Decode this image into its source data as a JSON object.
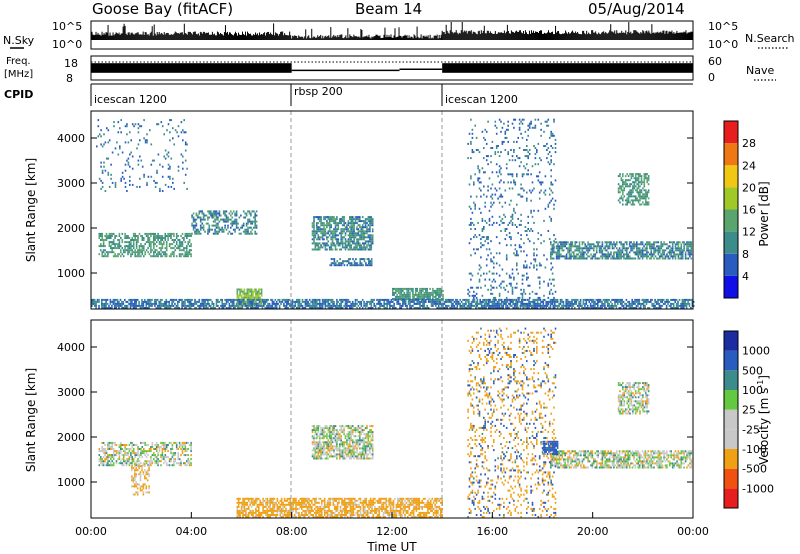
{
  "header": {
    "station": "Goose Bay (fitACF)",
    "beam": "Beam 14",
    "date": "05/Aug/2014"
  },
  "noise_panel": {
    "left_label": "N.Sky",
    "left_ticks": [
      "10^5",
      "10^0"
    ],
    "right_label": "N.Search",
    "right_ticks": [
      "10^5",
      "10^0"
    ]
  },
  "freq_panel": {
    "left_label_line1": "Freq.",
    "left_label_line2": "[MHz]",
    "left_ticks": [
      "18",
      "8"
    ],
    "right_label": "Nave",
    "right_ticks": [
      "60",
      "0"
    ]
  },
  "cpid_panel": {
    "label": "CPID",
    "segments": [
      {
        "name": "icescan 1200",
        "start_hour": 0
      },
      {
        "name": "rbsp 200",
        "start_hour": 8
      },
      {
        "name": "icescan 1200",
        "start_hour": 14
      }
    ]
  },
  "colors": {
    "power": [
      "#1010e6",
      "#2a5cbf",
      "#3c8c8c",
      "#5aa56e",
      "#a0c828",
      "#f0c814",
      "#f07814",
      "#e61e1e"
    ],
    "velocity": [
      "#e61e1e",
      "#f05010",
      "#f0a014",
      "#c8c8c8",
      "#c8c8c8",
      "#64c840",
      "#3c8c8c",
      "#2a5cbf",
      "#1a2ca0"
    ]
  },
  "chart_data": [
    {
      "type": "heatmap",
      "name": "power",
      "ylabel": "Slant Range [km]",
      "yticks": [
        "4000",
        "3000",
        "2000",
        "1000"
      ],
      "ylim": [
        200,
        4600
      ],
      "xlim": [
        0,
        24
      ],
      "colorbar_label": "Power [dB]",
      "colorbar_ticks": [
        "28",
        "24",
        "20",
        "16",
        "12",
        "8",
        "4"
      ],
      "colorbar_range": [
        0,
        32
      ],
      "features": [
        {
          "t0": 0.3,
          "t1": 4.0,
          "r0": 1350,
          "r1": 1850,
          "power": 10,
          "density": 0.55
        },
        {
          "t0": 4.0,
          "t1": 6.6,
          "r0": 1850,
          "r1": 2350,
          "power": 8,
          "density": 0.45
        },
        {
          "t0": 8.8,
          "t1": 11.2,
          "r0": 1500,
          "r1": 2250,
          "power": 8,
          "density": 0.7
        },
        {
          "t0": 9.5,
          "t1": 11.2,
          "r0": 1150,
          "r1": 1300,
          "power": 6,
          "density": 0.6
        },
        {
          "t0": 5.8,
          "t1": 6.8,
          "r0": 250,
          "r1": 650,
          "power": 14,
          "density": 0.85
        },
        {
          "t0": 12.0,
          "t1": 14.0,
          "r0": 400,
          "r1": 650,
          "power": 10,
          "density": 0.8
        },
        {
          "t0": 0.0,
          "t1": 24.0,
          "r0": 200,
          "r1": 400,
          "power": 6,
          "density": 0.7
        },
        {
          "t0": 18.3,
          "t1": 23.9,
          "r0": 1300,
          "r1": 1700,
          "power": 8,
          "density": 0.65
        },
        {
          "t0": 21.0,
          "t1": 22.2,
          "r0": 2500,
          "r1": 3200,
          "power": 10,
          "density": 0.6
        },
        {
          "t0": 15.0,
          "t1": 18.5,
          "r0": 200,
          "r1": 4400,
          "power": 6,
          "density": 0.12
        },
        {
          "t0": 0.2,
          "t1": 3.8,
          "r0": 2800,
          "r1": 4400,
          "power": 6,
          "density": 0.08
        }
      ]
    },
    {
      "type": "heatmap",
      "name": "velocity",
      "xlabel": "Time UT",
      "xticks": [
        "00:00",
        "04:00",
        "08:00",
        "12:00",
        "16:00",
        "20:00",
        "00:00"
      ],
      "ylabel": "Slant Range [km]",
      "yticks": [
        "4000",
        "3000",
        "2000",
        "1000"
      ],
      "ylim": [
        200,
        4600
      ],
      "xlim": [
        0,
        24
      ],
      "colorbar_label": "Velocity [m s",
      "colorbar_label_sup": "-1",
      "colorbar_ticks": [
        "1000",
        "500",
        "100",
        "25",
        "-25",
        "-100",
        "-500",
        "-1000"
      ],
      "features": [
        {
          "t0": 0.3,
          "t1": 4.0,
          "r0": 1350,
          "r1": 1850,
          "vel": 0,
          "density": 0.55
        },
        {
          "t0": 1.6,
          "t1": 2.3,
          "r0": 700,
          "r1": 1400,
          "vel": -150,
          "density": 0.45
        },
        {
          "t0": 8.8,
          "t1": 11.2,
          "r0": 1500,
          "r1": 2250,
          "vel": 0,
          "density": 0.7
        },
        {
          "t0": 5.8,
          "t1": 14.0,
          "r0": 200,
          "r1": 650,
          "vel": -200,
          "density": 0.7
        },
        {
          "t0": 18.3,
          "t1": 23.9,
          "r0": 1300,
          "r1": 1700,
          "vel": 0,
          "density": 0.65
        },
        {
          "t0": 18.0,
          "t1": 18.6,
          "r0": 1600,
          "r1": 1900,
          "vel": 700,
          "density": 0.8
        },
        {
          "t0": 21.0,
          "t1": 22.2,
          "r0": 2500,
          "r1": 3200,
          "vel": 0,
          "density": 0.6
        },
        {
          "t0": 15.0,
          "t1": 18.5,
          "r0": 200,
          "r1": 4400,
          "vel": -300,
          "density": 0.12
        },
        {
          "t0": 15.0,
          "t1": 18.5,
          "r0": 200,
          "r1": 4400,
          "vel": 600,
          "density": 0.06
        }
      ]
    }
  ],
  "noise_series": {
    "description_free": true,
    "segments": [
      {
        "t0": 0,
        "t1": 8,
        "level": 0.55
      },
      {
        "t0": 8,
        "t1": 14,
        "level": 0.45
      },
      {
        "t0": 14,
        "t1": 24,
        "level": 0.6
      }
    ]
  },
  "freq_series": {
    "segments": [
      {
        "t0": 0,
        "t1": 8,
        "freq_hi": 15,
        "freq_lo": 11
      },
      {
        "t0": 8,
        "t1": 12.3,
        "freq_hi": 12,
        "freq_lo": 11
      },
      {
        "t0": 12.3,
        "t1": 14,
        "freq_hi": 12.5,
        "freq_lo": 12
      },
      {
        "t0": 14,
        "t1": 24,
        "freq_hi": 15,
        "freq_lo": 11
      }
    ],
    "nave_level": 45
  }
}
